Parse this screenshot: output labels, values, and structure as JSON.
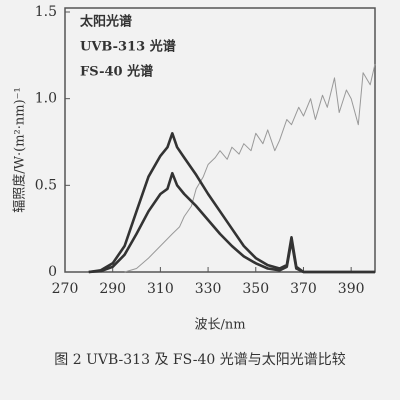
{
  "chart_data": {
    "type": "line",
    "xlabel": "波长/nm",
    "ylabel": "辐照度/W·(m²·nm)⁻¹",
    "caption": "图 2 UVB-313 及 FS-40 光谱与太阳光谱比较",
    "xlim": [
      270,
      400
    ],
    "xticks": [
      270,
      290,
      310,
      330,
      350,
      370,
      390
    ],
    "ylim": [
      0,
      1.5
    ],
    "yticks": [
      0,
      0.5,
      {
        "value": 1,
        "label": "1.0"
      },
      1.5
    ],
    "grid": false,
    "series": [
      {
        "name": "太阳光谱",
        "color": "#999999",
        "x": [
          295,
          300,
          305,
          310,
          315,
          318,
          320,
          323,
          325,
          328,
          330,
          333,
          335,
          338,
          340,
          343,
          345,
          348,
          350,
          353,
          355,
          358,
          360,
          363,
          365,
          368,
          370,
          373,
          375,
          378,
          380,
          383,
          385,
          388,
          390,
          393,
          395,
          398,
          400
        ],
        "values": [
          0,
          0.02,
          0.08,
          0.15,
          0.22,
          0.26,
          0.32,
          0.38,
          0.48,
          0.55,
          0.62,
          0.66,
          0.7,
          0.65,
          0.72,
          0.68,
          0.74,
          0.7,
          0.8,
          0.74,
          0.82,
          0.7,
          0.76,
          0.88,
          0.85,
          0.95,
          0.9,
          1.0,
          0.88,
          1.02,
          0.95,
          1.12,
          0.92,
          1.05,
          1.0,
          0.85,
          1.15,
          1.08,
          1.2
        ]
      },
      {
        "name": "UVB-313 光谱",
        "color": "#333333",
        "x": [
          280,
          285,
          290,
          295,
          300,
          305,
          310,
          313,
          315,
          317,
          320,
          325,
          330,
          335,
          340,
          345,
          350,
          355,
          360,
          363,
          365,
          367,
          370,
          400
        ],
        "values": [
          0,
          0.01,
          0.05,
          0.15,
          0.35,
          0.55,
          0.67,
          0.72,
          0.8,
          0.72,
          0.66,
          0.56,
          0.45,
          0.35,
          0.25,
          0.15,
          0.08,
          0.04,
          0.02,
          0.04,
          0.2,
          0.03,
          0,
          0
        ]
      },
      {
        "name": "FS-40 光谱",
        "color": "#333333",
        "x": [
          280,
          285,
          290,
          295,
          300,
          305,
          310,
          313,
          315,
          317,
          320,
          325,
          330,
          335,
          340,
          345,
          350,
          355,
          360,
          363,
          365,
          367,
          370,
          400
        ],
        "values": [
          0,
          0.005,
          0.03,
          0.1,
          0.22,
          0.35,
          0.45,
          0.48,
          0.57,
          0.5,
          0.45,
          0.38,
          0.3,
          0.22,
          0.15,
          0.09,
          0.05,
          0.02,
          0.01,
          0.03,
          0.18,
          0.02,
          0,
          0
        ]
      }
    ]
  }
}
